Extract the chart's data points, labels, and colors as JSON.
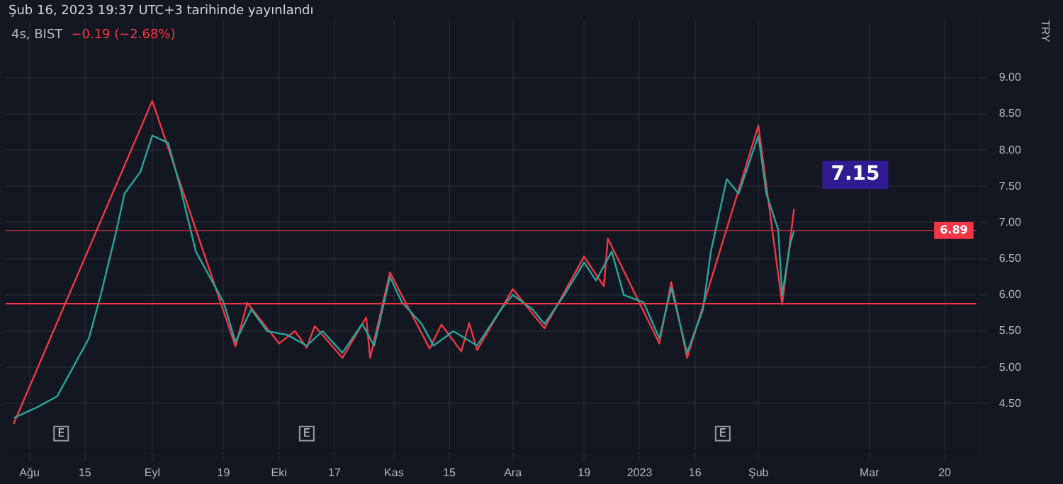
{
  "chart_data": {
    "type": "line",
    "title": "Şub 16, 2023 19:37 UTC+3 tarihinde yayınlandı",
    "subtitle": "4s, BIST",
    "ylabel": "TRY",
    "annotations": [
      "−0.19 (−2.68%)",
      {
        "text": "7.15",
        "x": "2023-02-10",
        "y": 7.19
      },
      {
        "text": "E",
        "x": "2022-08-09"
      },
      {
        "text": "E",
        "x": "2022-10-10"
      },
      {
        "text": "E",
        "x": "2023-01-23"
      }
    ],
    "series": [
      {
        "color": "#26a69a",
        "x": [
          "2022-07-28",
          "2022-08-03",
          "2022-08-08",
          "2022-08-12",
          "2022-08-16",
          "2022-08-19",
          "2022-08-23",
          "2022-08-25",
          "2022-08-29",
          "2022-09-01",
          "2022-09-05",
          "2022-09-08",
          "2022-09-12",
          "2022-09-15",
          "2022-09-19",
          "2022-09-22",
          "2022-09-26",
          "2022-09-30",
          "2022-10-05",
          "2022-10-10",
          "2022-10-14",
          "2022-10-19",
          "2022-10-24",
          "2022-10-27",
          "2022-10-31",
          "2022-11-03",
          "2022-11-08",
          "2022-11-11",
          "2022-11-16",
          "2022-11-22",
          "2022-11-28",
          "2022-12-01",
          "2022-12-06",
          "2022-12-09",
          "2022-12-14",
          "2022-12-19",
          "2022-12-22",
          "2022-12-26",
          "2022-12-29",
          "2023-01-03",
          "2023-01-07",
          "2023-01-10",
          "2023-01-14",
          "2023-01-18",
          "2023-01-20",
          "2023-01-24",
          "2023-01-27",
          "2023-02-01",
          "2023-02-03",
          "2023-02-06",
          "2023-02-07",
          "2023-02-09",
          "2023-02-10"
        ],
        "values": [
          4.3,
          4.45,
          4.6,
          5.0,
          5.4,
          6.0,
          6.9,
          7.4,
          7.7,
          8.2,
          8.1,
          7.5,
          6.6,
          6.3,
          5.9,
          5.35,
          5.8,
          5.5,
          5.45,
          5.3,
          5.5,
          5.2,
          5.6,
          5.3,
          6.25,
          5.9,
          5.6,
          5.3,
          5.5,
          5.3,
          5.8,
          6.0,
          5.8,
          5.6,
          6.0,
          6.45,
          6.2,
          6.6,
          6.0,
          5.9,
          5.4,
          6.1,
          5.2,
          5.8,
          6.6,
          7.6,
          7.4,
          8.2,
          7.4,
          6.9,
          6.0,
          6.7,
          6.89
        ]
      },
      {
        "type": "line",
        "x": [
          "2022-07-28",
          "2022-09-01",
          "2022-09-22",
          "2022-09-25",
          "2022-10-03",
          "2022-10-07",
          "2022-10-10",
          "2022-10-12",
          "2022-10-19",
          "2022-10-25",
          "2022-10-26",
          "2022-10-31",
          "2022-11-10",
          "2022-11-13",
          "2022-11-18",
          "2022-11-20",
          "2022-11-22",
          "2022-12-01",
          "2022-12-09",
          "2022-12-19",
          "2022-12-24",
          "2022-12-25",
          "2023-01-07",
          "2023-01-10",
          "2023-01-14",
          "2023-02-01",
          "2023-02-07",
          "2023-02-10"
        ],
        "values": [
          4.22,
          8.68,
          5.29,
          5.89,
          5.33,
          5.5,
          5.27,
          5.57,
          5.13,
          5.69,
          5.13,
          6.31,
          5.26,
          5.59,
          5.22,
          5.61,
          5.24,
          6.08,
          5.54,
          6.53,
          6.12,
          6.78,
          5.33,
          6.18,
          5.13,
          8.34,
          5.87,
          7.19
        ],
        "color": "#f23645"
      }
    ],
    "ref_lines": [
      {
        "axis": "y",
        "value": 5.88,
        "color": "#f23645"
      },
      {
        "axis": "y",
        "value": 6.89,
        "label": "6.89",
        "color": "#f23645"
      }
    ],
    "xlim": [
      "2022-07-26",
      "2023-03-28"
    ],
    "xticks": [
      {
        "value": "2022-08-01",
        "label": "Ağu"
      },
      {
        "value": "2022-08-15",
        "label": "15"
      },
      {
        "value": "2022-09-01",
        "label": "Eyl"
      },
      {
        "value": "2022-09-19",
        "label": "19"
      },
      {
        "value": "2022-10-03",
        "label": "Eki"
      },
      {
        "value": "2022-10-17",
        "label": "17"
      },
      {
        "value": "2022-11-01",
        "label": "Kas"
      },
      {
        "value": "2022-11-15",
        "label": "15"
      },
      {
        "value": "2022-12-01",
        "label": "Ara"
      },
      {
        "value": "2022-12-19",
        "label": "19"
      },
      {
        "value": "2023-01-02",
        "label": "2023"
      },
      {
        "value": "2023-01-16",
        "label": "16"
      },
      {
        "value": "2023-02-01",
        "label": "Şub"
      },
      {
        "value": "2023-03-01",
        "label": "Mar"
      },
      {
        "value": "2023-03-20",
        "label": "20"
      }
    ],
    "ylim": [
      3.85,
      9.8
    ],
    "yticks": [
      {
        "value": 4.5,
        "label": "4.50"
      },
      {
        "value": 5,
        "label": "5.00"
      },
      {
        "value": 5.5,
        "label": "5.50"
      },
      {
        "value": 6,
        "label": "6.00"
      },
      {
        "value": 6.5,
        "label": "6.50"
      },
      {
        "value": 7,
        "label": "7.00"
      },
      {
        "value": 7.5,
        "label": "7.50"
      },
      {
        "value": 8,
        "label": "8.00"
      },
      {
        "value": 8.5,
        "label": "8.50"
      },
      {
        "value": 9,
        "label": "9.00"
      }
    ],
    "grid": true,
    "legend": false,
    "marker": "none",
    "line_style": "solid"
  }
}
